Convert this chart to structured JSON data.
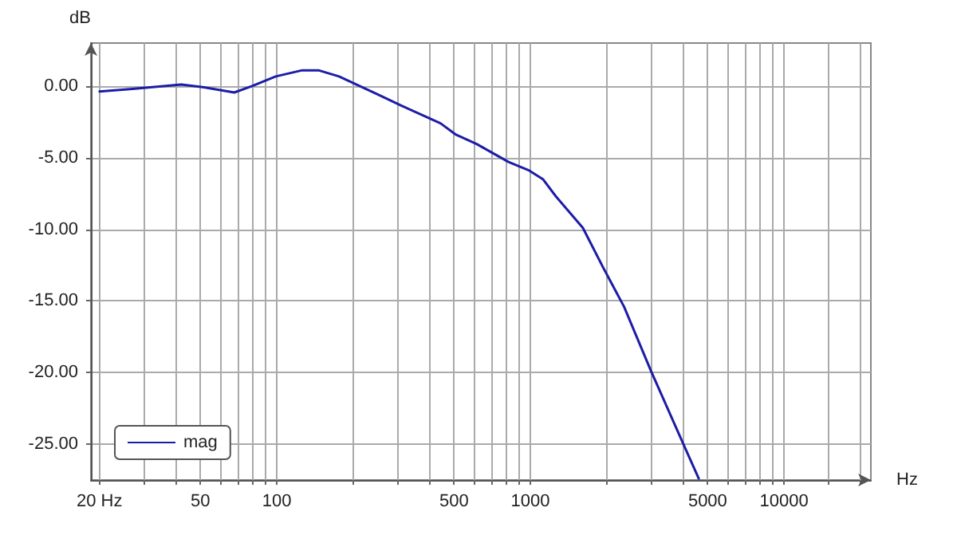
{
  "chart_data": {
    "type": "line",
    "xlabel": "Hz",
    "ylabel": "dB",
    "log": "x",
    "grid": true,
    "legend": "bottom left",
    "marker": "none",
    "line_style": "solid",
    "xlim": [
      18.5,
      22000
    ],
    "ylim": [
      -27.5,
      3
    ],
    "xticks": [
      {
        "value": 20,
        "label": "20 Hz"
      },
      {
        "value": 30,
        "label": null
      },
      {
        "value": 40,
        "label": null
      },
      50,
      {
        "value": 60,
        "label": null
      },
      {
        "value": 70,
        "label": null
      },
      {
        "value": 80,
        "label": null
      },
      {
        "value": 90,
        "label": null
      },
      100,
      {
        "value": 200,
        "label": null
      },
      {
        "value": 300,
        "label": null
      },
      {
        "value": 400,
        "label": null
      },
      500,
      {
        "value": 600,
        "label": null
      },
      {
        "value": 700,
        "label": null
      },
      {
        "value": 800,
        "label": null
      },
      {
        "value": 900,
        "label": null
      },
      1000,
      {
        "value": 2000,
        "label": null
      },
      {
        "value": 3000,
        "label": null
      },
      {
        "value": 4000,
        "label": null
      },
      5000,
      {
        "value": 6000,
        "label": null
      },
      {
        "value": 7000,
        "label": null
      },
      {
        "value": 8000,
        "label": null
      },
      {
        "value": 9000,
        "label": null
      },
      10000,
      {
        "value": 15000,
        "label": null
      },
      {
        "value": 20000,
        "label": null
      }
    ],
    "yticks": [
      {
        "value": 0,
        "label": "0.00"
      },
      {
        "value": -5,
        "label": "-5.00"
      },
      {
        "value": -10,
        "label": "-10.00"
      },
      {
        "value": -15,
        "label": "-15.00"
      },
      {
        "value": -20,
        "label": "-20.00"
      },
      {
        "value": -25,
        "label": "-25.00"
      }
    ],
    "series": [
      {
        "name": "mag",
        "color": "#1c1ca8",
        "x": [
          20,
          27,
          42,
          51,
          68,
          80,
          99,
          126,
          146,
          176,
          248,
          313,
          442,
          509,
          614,
          820,
          990,
          1120,
          1260,
          1610,
          1940,
          2340,
          2990,
          3990,
          4610
        ],
        "values": [
          -0.38,
          -0.2,
          0.1,
          -0.08,
          -0.45,
          0,
          0.67,
          1.1,
          1.1,
          0.67,
          -0.55,
          -1.4,
          -2.6,
          -3.4,
          -4.05,
          -5.3,
          -5.9,
          -6.5,
          -7.7,
          -9.9,
          -12.7,
          -15.4,
          -19.9,
          -24.9,
          -27.4
        ]
      }
    ]
  }
}
